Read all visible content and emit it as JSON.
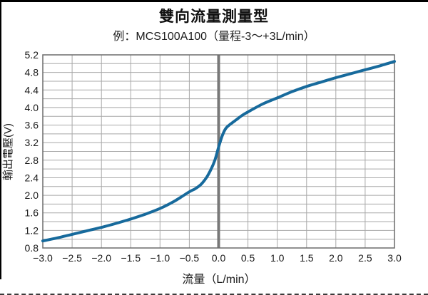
{
  "frame": {
    "background": "#ffffff",
    "border_color": "#000000"
  },
  "chart_data": {
    "type": "line",
    "title": "雙向流量測量型",
    "subtitle": "例：MCS100A100（量程-3～+3L/min）",
    "xlabel": "流量（L/min）",
    "ylabel": "輸出電壓(V)",
    "xlim": [
      -3.0,
      3.0
    ],
    "ylim": [
      0.8,
      5.2
    ],
    "x_grid_step": 0.5,
    "y_grid_step": 0.2,
    "grid": true,
    "legend_position": "none",
    "zero_line_x": 0.0,
    "x_tick_labels": [
      "−3.0",
      "−2.5",
      "−2.0",
      "−1.5",
      "−1.0",
      "−0.5",
      "0.0",
      "0.5",
      "1.0",
      "1.5",
      "2.0",
      "2.5",
      "3.0"
    ],
    "x_tick_values": [
      -3.0,
      -2.5,
      -2.0,
      -1.5,
      -1.0,
      -0.5,
      0.0,
      0.5,
      1.0,
      1.5,
      2.0,
      2.5,
      3.0
    ],
    "y_tick_labels": [
      "0.8",
      "1.2",
      "1.6",
      "2.0",
      "2.4",
      "2.8",
      "3.2",
      "3.6",
      "4.0",
      "4.4",
      "4.8",
      "5.2"
    ],
    "y_tick_values": [
      0.8,
      1.2,
      1.6,
      2.0,
      2.4,
      2.8,
      3.2,
      3.6,
      4.0,
      4.4,
      4.8,
      5.2
    ],
    "curve": {
      "points": [
        [
          -3.0,
          0.96
        ],
        [
          -2.75,
          1.03
        ],
        [
          -2.5,
          1.11
        ],
        [
          -2.25,
          1.19
        ],
        [
          -2.0,
          1.27
        ],
        [
          -1.75,
          1.36
        ],
        [
          -1.5,
          1.46
        ],
        [
          -1.25,
          1.57
        ],
        [
          -1.0,
          1.7
        ],
        [
          -0.75,
          1.87
        ],
        [
          -0.5,
          2.08
        ],
        [
          -0.4,
          2.15
        ],
        [
          -0.3,
          2.25
        ],
        [
          -0.2,
          2.42
        ],
        [
          -0.12,
          2.62
        ],
        [
          -0.06,
          2.82
        ],
        [
          0.0,
          3.1
        ],
        [
          0.06,
          3.35
        ],
        [
          0.12,
          3.52
        ],
        [
          0.2,
          3.62
        ],
        [
          0.3,
          3.72
        ],
        [
          0.4,
          3.82
        ],
        [
          0.5,
          3.9
        ],
        [
          0.75,
          4.08
        ],
        [
          1.0,
          4.22
        ],
        [
          1.25,
          4.36
        ],
        [
          1.5,
          4.48
        ],
        [
          1.75,
          4.58
        ],
        [
          2.0,
          4.68
        ],
        [
          2.25,
          4.77
        ],
        [
          2.5,
          4.86
        ],
        [
          2.75,
          4.95
        ],
        [
          3.0,
          5.05
        ]
      ]
    },
    "colors": {
      "curve": "#176a9c",
      "grid": "#a8a8a8",
      "plot_border": "#6b6b6b",
      "zero_line": "#787878",
      "text": "#1a1a1a"
    }
  }
}
